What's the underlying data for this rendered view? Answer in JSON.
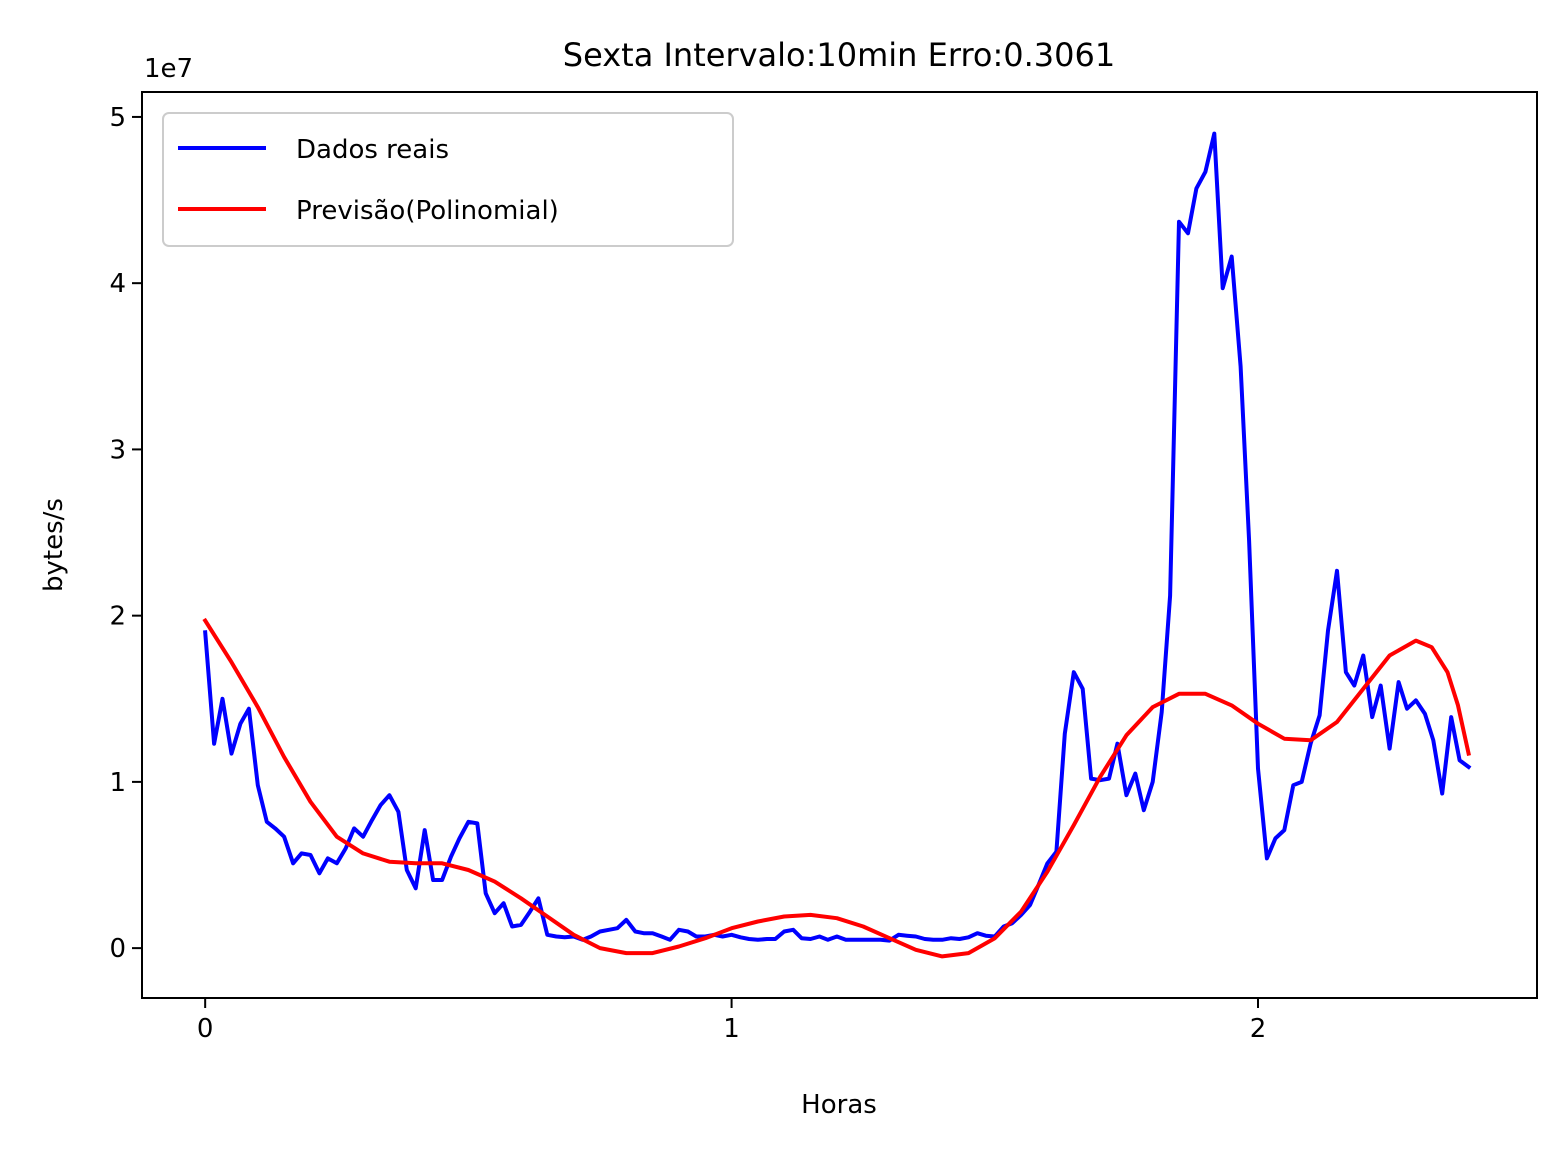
{
  "chart_data": {
    "type": "line",
    "title": "Sexta Intervalo:10min Erro:0.3061",
    "xlabel": "Horas",
    "ylabel": "bytes/s",
    "y_offset_label": "1e7",
    "xlim": [
      -0.12,
      2.53
    ],
    "ylim": [
      -3000000,
      51500000
    ],
    "xticks": [
      0,
      1,
      2
    ],
    "xtick_labels": [
      "0",
      "1",
      "2"
    ],
    "yticks": [
      0,
      10000000,
      20000000,
      30000000,
      40000000,
      50000000
    ],
    "ytick_labels": [
      "0",
      "1",
      "2",
      "3",
      "4",
      "5"
    ],
    "grid": false,
    "legend_position": "upper-left",
    "series": [
      {
        "name": "Dados reais",
        "color": "#0000ff",
        "points": [
          [
            0.0,
            19000000
          ],
          [
            0.017,
            12300000
          ],
          [
            0.033,
            15000000
          ],
          [
            0.05,
            11700000
          ],
          [
            0.067,
            13500000
          ],
          [
            0.083,
            14400000
          ],
          [
            0.1,
            9800000
          ],
          [
            0.117,
            7600000
          ],
          [
            0.133,
            7200000
          ],
          [
            0.15,
            6700000
          ],
          [
            0.167,
            5100000
          ],
          [
            0.183,
            5700000
          ],
          [
            0.2,
            5600000
          ],
          [
            0.217,
            4500000
          ],
          [
            0.233,
            5400000
          ],
          [
            0.25,
            5100000
          ],
          [
            0.267,
            6000000
          ],
          [
            0.283,
            7200000
          ],
          [
            0.3,
            6700000
          ],
          [
            0.317,
            7700000
          ],
          [
            0.333,
            8600000
          ],
          [
            0.35,
            9200000
          ],
          [
            0.367,
            8200000
          ],
          [
            0.383,
            4700000
          ],
          [
            0.4,
            3600000
          ],
          [
            0.417,
            7100000
          ],
          [
            0.433,
            4100000
          ],
          [
            0.45,
            4100000
          ],
          [
            0.467,
            5500000
          ],
          [
            0.483,
            6600000
          ],
          [
            0.5,
            7600000
          ],
          [
            0.517,
            7500000
          ],
          [
            0.533,
            3300000
          ],
          [
            0.55,
            2100000
          ],
          [
            0.567,
            2700000
          ],
          [
            0.583,
            1300000
          ],
          [
            0.6,
            1400000
          ],
          [
            0.617,
            2200000
          ],
          [
            0.633,
            3000000
          ],
          [
            0.65,
            800000
          ],
          [
            0.667,
            700000
          ],
          [
            0.683,
            650000
          ],
          [
            0.7,
            700000
          ],
          [
            0.717,
            500000
          ],
          [
            0.733,
            700000
          ],
          [
            0.75,
            1000000
          ],
          [
            0.767,
            1100000
          ],
          [
            0.783,
            1200000
          ],
          [
            0.8,
            1700000
          ],
          [
            0.817,
            1000000
          ],
          [
            0.833,
            900000
          ],
          [
            0.85,
            900000
          ],
          [
            0.867,
            700000
          ],
          [
            0.883,
            500000
          ],
          [
            0.9,
            1100000
          ],
          [
            0.917,
            1000000
          ],
          [
            0.933,
            700000
          ],
          [
            0.95,
            700000
          ],
          [
            0.967,
            800000
          ],
          [
            0.983,
            700000
          ],
          [
            1.0,
            800000
          ],
          [
            1.017,
            650000
          ],
          [
            1.033,
            550000
          ],
          [
            1.05,
            500000
          ],
          [
            1.067,
            550000
          ],
          [
            1.083,
            550000
          ],
          [
            1.1,
            1000000
          ],
          [
            1.117,
            1100000
          ],
          [
            1.133,
            600000
          ],
          [
            1.15,
            550000
          ],
          [
            1.167,
            700000
          ],
          [
            1.183,
            500000
          ],
          [
            1.2,
            700000
          ],
          [
            1.217,
            500000
          ],
          [
            1.233,
            500000
          ],
          [
            1.25,
            500000
          ],
          [
            1.267,
            500000
          ],
          [
            1.283,
            500000
          ],
          [
            1.3,
            450000
          ],
          [
            1.317,
            800000
          ],
          [
            1.333,
            750000
          ],
          [
            1.35,
            700000
          ],
          [
            1.367,
            550000
          ],
          [
            1.383,
            500000
          ],
          [
            1.4,
            500000
          ],
          [
            1.417,
            600000
          ],
          [
            1.433,
            550000
          ],
          [
            1.45,
            650000
          ],
          [
            1.467,
            900000
          ],
          [
            1.483,
            750000
          ],
          [
            1.5,
            700000
          ],
          [
            1.517,
            1300000
          ],
          [
            1.533,
            1500000
          ],
          [
            1.55,
            2000000
          ],
          [
            1.567,
            2600000
          ],
          [
            1.583,
            3800000
          ],
          [
            1.6,
            5100000
          ],
          [
            1.617,
            5800000
          ],
          [
            1.633,
            12900000
          ],
          [
            1.65,
            16600000
          ],
          [
            1.667,
            15600000
          ],
          [
            1.683,
            10200000
          ],
          [
            1.7,
            10100000
          ],
          [
            1.717,
            10200000
          ],
          [
            1.733,
            12300000
          ],
          [
            1.75,
            9200000
          ],
          [
            1.767,
            10500000
          ],
          [
            1.783,
            8300000
          ],
          [
            1.8,
            10000000
          ],
          [
            1.817,
            14200000
          ],
          [
            1.833,
            21200000
          ],
          [
            1.85,
            43700000
          ],
          [
            1.867,
            43000000
          ],
          [
            1.883,
            45700000
          ],
          [
            1.9,
            46700000
          ],
          [
            1.917,
            49000000
          ],
          [
            1.933,
            39700000
          ],
          [
            1.95,
            41600000
          ],
          [
            1.967,
            35000000
          ],
          [
            1.983,
            24500000
          ],
          [
            2.0,
            10800000
          ],
          [
            2.017,
            5400000
          ],
          [
            2.033,
            6600000
          ],
          [
            2.05,
            7100000
          ],
          [
            2.067,
            9800000
          ],
          [
            2.083,
            10000000
          ],
          [
            2.1,
            12300000
          ],
          [
            2.117,
            14000000
          ],
          [
            2.133,
            19100000
          ],
          [
            2.15,
            22700000
          ],
          [
            2.167,
            16600000
          ],
          [
            2.183,
            15800000
          ],
          [
            2.2,
            17600000
          ],
          [
            2.217,
            13900000
          ],
          [
            2.233,
            15800000
          ],
          [
            2.25,
            12000000
          ],
          [
            2.267,
            16000000
          ],
          [
            2.283,
            14400000
          ],
          [
            2.3,
            14900000
          ],
          [
            2.317,
            14100000
          ],
          [
            2.333,
            12500000
          ],
          [
            2.35,
            9300000
          ],
          [
            2.367,
            13900000
          ],
          [
            2.383,
            11300000
          ],
          [
            2.4,
            10900000
          ]
        ]
      },
      {
        "name": "Previsão(Polinomial)",
        "color": "#ff0000",
        "points": [
          [
            0.0,
            19700000
          ],
          [
            0.05,
            17200000
          ],
          [
            0.1,
            14500000
          ],
          [
            0.15,
            11500000
          ],
          [
            0.2,
            8800000
          ],
          [
            0.25,
            6700000
          ],
          [
            0.3,
            5700000
          ],
          [
            0.35,
            5200000
          ],
          [
            0.4,
            5100000
          ],
          [
            0.45,
            5100000
          ],
          [
            0.5,
            4700000
          ],
          [
            0.55,
            4000000
          ],
          [
            0.6,
            3000000
          ],
          [
            0.65,
            1900000
          ],
          [
            0.7,
            800000
          ],
          [
            0.75,
            0
          ],
          [
            0.8,
            -300000
          ],
          [
            0.85,
            -300000
          ],
          [
            0.9,
            100000
          ],
          [
            0.95,
            600000
          ],
          [
            1.0,
            1200000
          ],
          [
            1.05,
            1600000
          ],
          [
            1.1,
            1900000
          ],
          [
            1.15,
            2000000
          ],
          [
            1.2,
            1800000
          ],
          [
            1.25,
            1300000
          ],
          [
            1.3,
            600000
          ],
          [
            1.35,
            -100000
          ],
          [
            1.4,
            -500000
          ],
          [
            1.45,
            -300000
          ],
          [
            1.5,
            600000
          ],
          [
            1.55,
            2200000
          ],
          [
            1.6,
            4600000
          ],
          [
            1.65,
            7400000
          ],
          [
            1.7,
            10300000
          ],
          [
            1.75,
            12800000
          ],
          [
            1.8,
            14500000
          ],
          [
            1.85,
            15300000
          ],
          [
            1.9,
            15300000
          ],
          [
            1.95,
            14600000
          ],
          [
            2.0,
            13500000
          ],
          [
            2.05,
            12600000
          ],
          [
            2.1,
            12500000
          ],
          [
            2.15,
            13600000
          ],
          [
            2.2,
            15600000
          ],
          [
            2.25,
            17600000
          ],
          [
            2.3,
            18500000
          ],
          [
            2.33,
            18100000
          ],
          [
            2.36,
            16600000
          ],
          [
            2.38,
            14600000
          ],
          [
            2.4,
            11700000
          ]
        ]
      }
    ]
  }
}
